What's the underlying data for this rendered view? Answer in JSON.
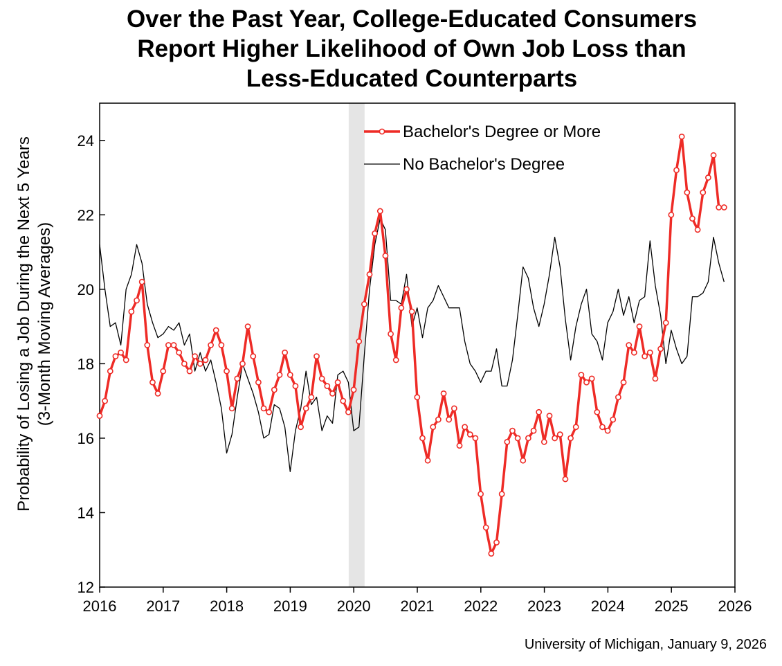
{
  "chart_data": {
    "type": "line",
    "title_lines": [
      "Over the Past Year, College-Educated Consumers",
      "Report Higher Likelihood of Own Job Loss than",
      "Less-Educated Counterparts"
    ],
    "ylabel_lines": [
      "Probability of Losing a Job During the Next 5 Years",
      "(3-Month Moving Averages)"
    ],
    "xlabel": "",
    "xlim": [
      2016,
      2026
    ],
    "ylim": [
      12,
      25
    ],
    "x_ticks": [
      2016,
      2017,
      2018,
      2019,
      2020,
      2021,
      2022,
      2023,
      2024,
      2025,
      2026
    ],
    "y_ticks": [
      12,
      14,
      16,
      18,
      20,
      22,
      24
    ],
    "shaded_region": [
      2019.92,
      2020.17
    ],
    "legend_position": "top-center",
    "series": [
      {
        "name": "Bachelor's Degree or More",
        "color": "#ee2b26",
        "marker": "circle",
        "start": 2016.0,
        "step": 0.0833,
        "values": [
          16.6,
          17.0,
          17.8,
          18.2,
          18.3,
          18.1,
          19.4,
          19.7,
          20.2,
          18.5,
          17.5,
          17.2,
          17.8,
          18.5,
          18.5,
          18.3,
          18.0,
          17.8,
          18.2,
          18.0,
          18.1,
          18.5,
          18.9,
          18.5,
          17.8,
          16.8,
          17.6,
          18.0,
          19.0,
          18.2,
          17.5,
          16.8,
          16.7,
          17.3,
          17.7,
          18.3,
          17.7,
          17.4,
          16.3,
          16.8,
          17.1,
          18.2,
          17.6,
          17.4,
          17.2,
          17.5,
          17.0,
          16.7,
          17.3,
          18.6,
          19.6,
          20.4,
          21.5,
          22.1,
          20.9,
          18.8,
          18.1,
          19.5,
          20.0,
          19.4,
          17.1,
          16.0,
          15.4,
          16.3,
          16.5,
          17.2,
          16.5,
          16.8,
          15.8,
          16.3,
          16.1,
          16.0,
          14.5,
          13.6,
          12.9,
          13.2,
          14.5,
          15.9,
          16.2,
          16.0,
          15.4,
          16.0,
          16.2,
          16.7,
          15.9,
          16.6,
          16.0,
          16.1,
          14.9,
          16.0,
          16.3,
          17.7,
          17.5,
          17.6,
          16.7,
          16.3,
          16.2,
          16.5,
          17.1,
          17.5,
          18.5,
          18.3,
          19.0,
          18.2,
          18.3,
          17.6,
          18.4,
          19.1,
          22.0,
          23.2,
          24.1,
          22.6,
          21.9,
          21.6,
          22.6,
          23.0,
          23.6,
          22.2,
          22.2
        ]
      },
      {
        "name": "No Bachelor's Degree",
        "color": "#000000",
        "marker": "none",
        "start": 2016.0,
        "step": 0.0833,
        "values": [
          21.2,
          20.0,
          19.0,
          19.1,
          18.5,
          20.0,
          20.4,
          21.2,
          20.7,
          19.6,
          19.1,
          18.7,
          18.8,
          19.0,
          18.9,
          19.1,
          18.5,
          18.8,
          17.8,
          18.3,
          17.8,
          18.1,
          17.5,
          16.8,
          15.6,
          16.1,
          17.1,
          18.0,
          17.6,
          17.2,
          16.7,
          16.0,
          16.1,
          16.9,
          16.8,
          16.3,
          15.1,
          16.2,
          16.8,
          17.8,
          16.9,
          17.1,
          16.2,
          16.6,
          16.4,
          17.7,
          17.8,
          17.5,
          16.2,
          16.3,
          18.2,
          20.0,
          21.2,
          21.9,
          21.6,
          19.7,
          19.7,
          19.6,
          20.4,
          19.0,
          19.5,
          18.7,
          19.5,
          19.7,
          20.1,
          19.8,
          19.5,
          19.5,
          19.5,
          18.6,
          18.0,
          17.8,
          17.5,
          17.8,
          17.8,
          18.4,
          17.4,
          17.4,
          18.1,
          19.3,
          20.6,
          20.3,
          19.5,
          19.0,
          19.6,
          20.4,
          21.4,
          20.6,
          19.2,
          18.1,
          19.0,
          19.6,
          20.0,
          18.8,
          18.6,
          18.1,
          19.1,
          19.4,
          20.0,
          19.3,
          19.8,
          19.1,
          19.7,
          19.8,
          21.3,
          20.1,
          19.3,
          18.0,
          18.9,
          18.4,
          18.0,
          18.2,
          19.8,
          19.8,
          19.9,
          20.2,
          21.4,
          20.7,
          20.2
        ]
      }
    ]
  },
  "footer": {
    "source": "University of Michigan, January 9, 2026"
  }
}
